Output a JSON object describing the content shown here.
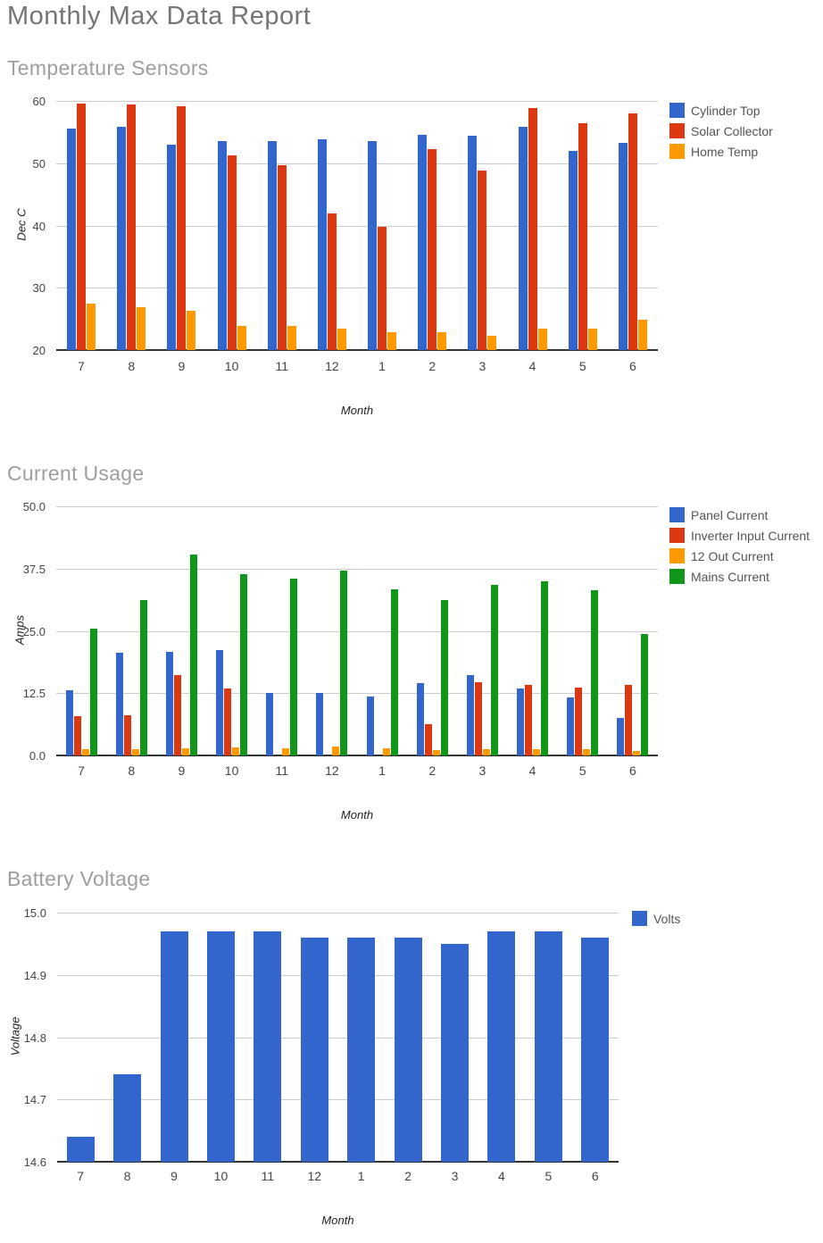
{
  "page": {
    "title": "Monthly Max Data Report"
  },
  "style": {
    "series_blue": "#3366CC",
    "series_red": "#DC3912",
    "series_orange": "#FF9900",
    "series_green": "#109618",
    "grid_color": "#CCCCCC",
    "axis_color": "#333333",
    "tick_text_color": "#444444",
    "legend_text_color": "#545454",
    "heading_color": "#9E9E9E",
    "title_color": "#757575"
  },
  "chart_data": [
    {
      "type": "bar",
      "title": "Temperature Sensors",
      "categories": [
        "7",
        "8",
        "9",
        "10",
        "11",
        "12",
        "1",
        "2",
        "3",
        "4",
        "5",
        "6"
      ],
      "series": [
        {
          "name": "Cylinder Top",
          "color": "#3366CC",
          "values": [
            55.5,
            55.9,
            53.0,
            53.5,
            53.6,
            53.8,
            53.6,
            54.6,
            54.4,
            55.8,
            51.9,
            53.2
          ]
        },
        {
          "name": "Solar Collector",
          "color": "#DC3912",
          "values": [
            59.6,
            59.4,
            59.2,
            51.2,
            49.7,
            41.9,
            39.8,
            52.3,
            48.8,
            58.9,
            56.4,
            58.0
          ]
        },
        {
          "name": "Home Temp",
          "color": "#FF9900",
          "values": [
            27.4,
            26.9,
            26.3,
            23.9,
            23.9,
            23.4,
            22.9,
            22.9,
            22.3,
            23.4,
            23.4,
            24.9
          ]
        }
      ],
      "xlabel": "Month",
      "ylabel": "Dec C",
      "ylim": [
        20,
        60
      ],
      "yticks": [
        "60",
        "50",
        "40",
        "30",
        "20"
      ],
      "grid": true,
      "legend_position": "right"
    },
    {
      "type": "bar",
      "title": "Current Usage",
      "categories": [
        "7",
        "8",
        "9",
        "10",
        "11",
        "12",
        "1",
        "2",
        "3",
        "4",
        "5",
        "6"
      ],
      "series": [
        {
          "name": "Panel Current",
          "color": "#3366CC",
          "values": [
            13.1,
            20.6,
            20.7,
            21.1,
            12.5,
            12.6,
            11.9,
            14.5,
            16.1,
            13.4,
            11.7,
            7.5
          ]
        },
        {
          "name": "Inverter Input Current",
          "color": "#DC3912",
          "values": [
            7.9,
            8.0,
            16.1,
            13.5,
            0,
            0,
            0,
            6.3,
            14.7,
            14.2,
            13.7,
            14.2
          ]
        },
        {
          "name": "12 Out Current",
          "color": "#FF9900",
          "values": [
            1.2,
            1.2,
            1.4,
            1.7,
            1.5,
            1.8,
            1.4,
            1.0,
            1.2,
            1.2,
            1.3,
            0.9
          ]
        },
        {
          "name": "Mains Current",
          "color": "#109618",
          "values": [
            25.4,
            31.1,
            40.3,
            36.4,
            35.4,
            37.1,
            33.3,
            31.2,
            34.2,
            35.0,
            33.2,
            24.4
          ]
        }
      ],
      "xlabel": "Month",
      "ylabel": "Amps",
      "ylim": [
        0,
        50
      ],
      "yticks": [
        "50.0",
        "37.5",
        "25.0",
        "12.5",
        "0.0"
      ],
      "grid": true,
      "legend_position": "right"
    },
    {
      "type": "bar",
      "title": "Battery Voltage",
      "categories": [
        "7",
        "8",
        "9",
        "10",
        "11",
        "12",
        "1",
        "2",
        "3",
        "4",
        "5",
        "6"
      ],
      "series": [
        {
          "name": "Volts",
          "color": "#3366CC",
          "values": [
            14.64,
            14.74,
            14.97,
            14.97,
            14.97,
            14.96,
            14.96,
            14.96,
            14.95,
            14.97,
            14.97,
            14.96
          ]
        }
      ],
      "xlabel": "Month",
      "ylabel": "Voltage",
      "ylim": [
        14.6,
        15.0
      ],
      "yticks": [
        "15.0",
        "14.9",
        "14.8",
        "14.7",
        "14.6"
      ],
      "grid": true,
      "legend_position": "top-right"
    }
  ]
}
